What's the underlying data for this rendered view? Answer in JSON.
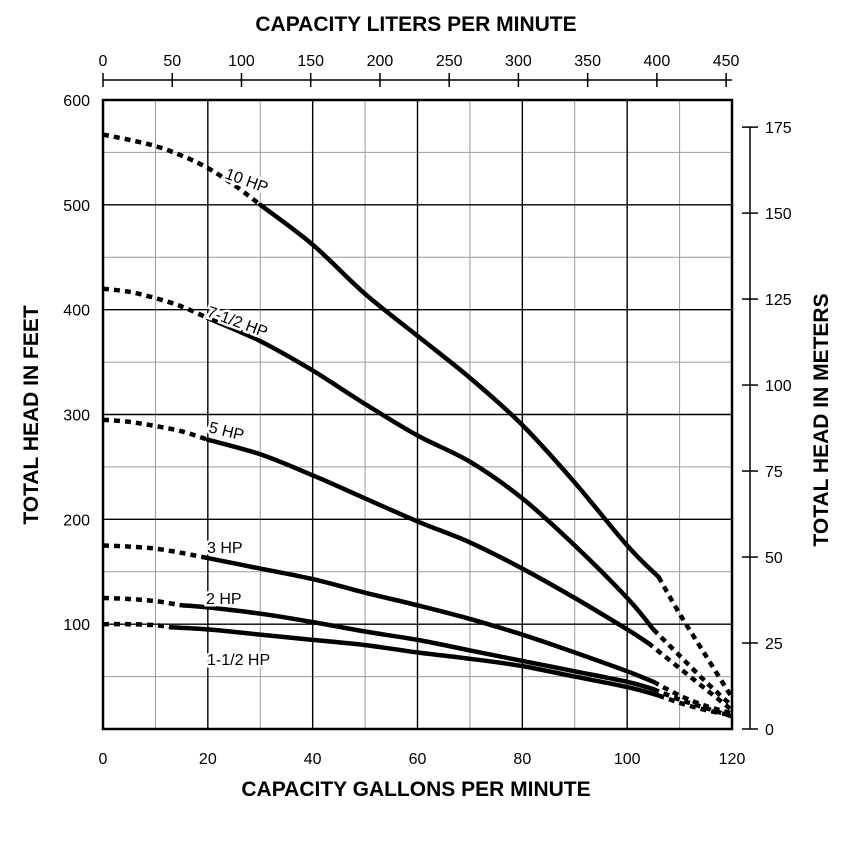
{
  "chart_data": {
    "type": "line",
    "title_top": "CAPACITY LITERS PER MINUTE",
    "xlabel": "CAPACITY GALLONS PER MINUTE",
    "ylabel_left": "TOTAL HEAD IN FEET",
    "ylabel_right": "TOTAL HEAD IN METERS",
    "xlim": [
      0,
      120
    ],
    "ylim": [
      0,
      600
    ],
    "x_ticks": [
      "0",
      "20",
      "40",
      "60",
      "80",
      "100",
      "120"
    ],
    "y_ticks": [
      "100",
      "200",
      "300",
      "400",
      "500",
      "600"
    ],
    "top_ticks": [
      "0",
      "50",
      "100",
      "150",
      "200",
      "250",
      "300",
      "350",
      "400",
      "450"
    ],
    "right_ticks": [
      "0",
      "25",
      "50",
      "75",
      "100",
      "125",
      "150",
      "175"
    ],
    "series": [
      {
        "name": "10 HP",
        "dashed_x": [
          0,
          5,
          10,
          15,
          20,
          25,
          30
        ],
        "dashed_y": [
          567,
          562,
          556,
          547,
          535,
          519,
          500
        ],
        "solid_x": [
          30,
          40,
          50,
          60,
          70,
          80,
          90,
          100,
          106
        ],
        "solid_y": [
          500,
          462,
          415,
          375,
          335,
          290,
          235,
          175,
          145
        ],
        "tail_x": [
          106,
          110,
          115,
          120
        ],
        "tail_y": [
          145,
          110,
          70,
          30
        ]
      },
      {
        "name": "7-1/2 HP",
        "dashed_x": [
          0,
          5,
          10,
          15,
          20
        ],
        "dashed_y": [
          420,
          417,
          411,
          403,
          392
        ],
        "solid_x": [
          20,
          30,
          40,
          50,
          60,
          70,
          80,
          90,
          100,
          105
        ],
        "solid_y": [
          392,
          370,
          342,
          310,
          280,
          255,
          220,
          175,
          125,
          95
        ],
        "tail_x": [
          105,
          110,
          115,
          120
        ],
        "tail_y": [
          95,
          70,
          45,
          22
        ]
      },
      {
        "name": "5 HP",
        "dashed_x": [
          0,
          5,
          10,
          15,
          20
        ],
        "dashed_y": [
          295,
          293,
          289,
          284,
          276
        ],
        "solid_x": [
          20,
          30,
          40,
          50,
          60,
          70,
          80,
          90,
          100,
          104
        ],
        "solid_y": [
          276,
          262,
          242,
          220,
          198,
          178,
          153,
          125,
          95,
          82
        ],
        "tail_x": [
          104,
          110,
          115,
          120
        ],
        "tail_y": [
          82,
          58,
          38,
          18
        ]
      },
      {
        "name": "3 HP",
        "dashed_x": [
          0,
          5,
          10,
          15,
          20
        ],
        "dashed_y": [
          175,
          174,
          172,
          168,
          163
        ],
        "solid_x": [
          20,
          30,
          40,
          50,
          60,
          70,
          80,
          90,
          100,
          105
        ],
        "solid_y": [
          163,
          153,
          143,
          130,
          118,
          105,
          90,
          73,
          55,
          45
        ],
        "tail_x": [
          105,
          110,
          115,
          120
        ],
        "tail_y": [
          45,
          32,
          22,
          15
        ]
      },
      {
        "name": "2 HP",
        "dashed_x": [
          0,
          5,
          10,
          15
        ],
        "dashed_y": [
          125,
          124,
          122,
          118
        ],
        "solid_x": [
          15,
          20,
          30,
          40,
          50,
          60,
          70,
          80,
          90,
          100,
          105
        ],
        "solid_y": [
          118,
          116,
          110,
          102,
          93,
          85,
          75,
          65,
          55,
          45,
          38
        ],
        "tail_x": [
          105,
          110,
          115,
          120
        ],
        "tail_y": [
          38,
          28,
          20,
          12
        ]
      },
      {
        "name": "1-1/2 HP",
        "dashed_x": [
          0,
          5,
          10,
          13
        ],
        "dashed_y": [
          100,
          100,
          99,
          97
        ],
        "solid_x": [
          13,
          20,
          30,
          40,
          50,
          60,
          70,
          80,
          90,
          100,
          106
        ],
        "solid_y": [
          97,
          95,
          90,
          85,
          80,
          73,
          67,
          60,
          50,
          40,
          32
        ],
        "tail_x": [
          106,
          110,
          115,
          120
        ],
        "tail_y": [
          32,
          25,
          18,
          13
        ]
      }
    ]
  }
}
